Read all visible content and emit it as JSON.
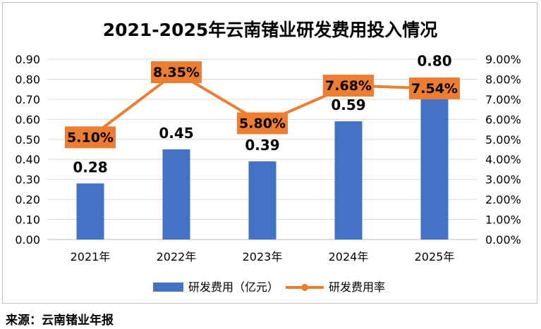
{
  "chart_data": {
    "type": "bar",
    "title": "2021-2025年云南锗业研发费用投入情况",
    "categories": [
      "2021年",
      "2022年",
      "2023年",
      "2024年",
      "2025年"
    ],
    "series": [
      {
        "name": "研发费用（亿元）",
        "type": "bar",
        "axis": "left",
        "values": [
          0.28,
          0.45,
          0.39,
          0.59,
          0.8
        ],
        "labels": [
          "0.28",
          "0.45",
          "0.39",
          "0.59",
          "0.80"
        ],
        "color": "#4472C4"
      },
      {
        "name": "研发费用率",
        "type": "line",
        "axis": "right",
        "values": [
          5.1,
          8.35,
          5.8,
          7.68,
          7.54
        ],
        "labels": [
          "5.10%",
          "8.35%",
          "5.80%",
          "7.68%",
          "7.54%"
        ],
        "color": "#ED7D31"
      }
    ],
    "ylim_left": [
      0,
      0.9
    ],
    "yticks_left": [
      "0.00",
      "0.10",
      "0.20",
      "0.30",
      "0.40",
      "0.50",
      "0.60",
      "0.70",
      "0.80",
      "0.90"
    ],
    "ylim_right": [
      0,
      9
    ],
    "yticks_right": [
      "0.00%",
      "1.00%",
      "2.00%",
      "3.00%",
      "4.00%",
      "5.00%",
      "6.00%",
      "7.00%",
      "8.00%",
      "9.00%"
    ],
    "grid": true,
    "legend": "bottom",
    "xlabel": "",
    "ylabel": ""
  },
  "source": "来源：云南锗业年报"
}
